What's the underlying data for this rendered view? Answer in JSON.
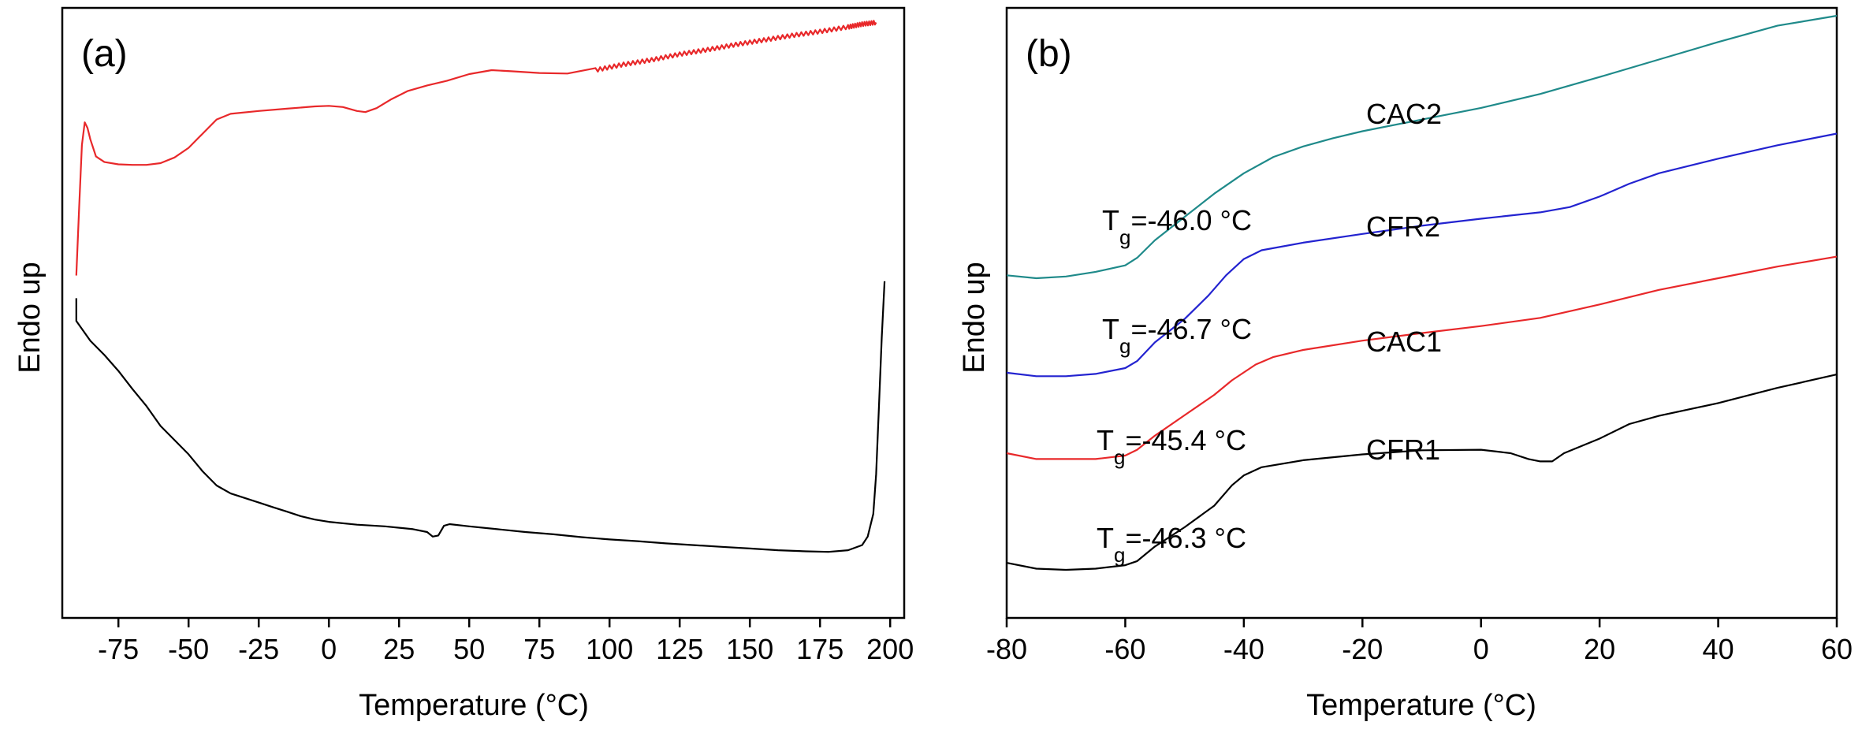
{
  "chart_data": [
    {
      "panel": "(a)",
      "type": "line",
      "xlabel": "Temperature (°C)",
      "ylabel": "Endo up",
      "xlim": [
        -95,
        205
      ],
      "ylim": [
        0,
        100
      ],
      "xticks": [
        -75,
        -50,
        -25,
        0,
        25,
        50,
        75,
        100,
        125,
        150,
        175,
        200
      ],
      "y_tick_labels": false,
      "series": [
        {
          "color": "#e8282a",
          "noise_above": 95,
          "points": [
            [
              -90,
              57
            ],
            [
              -89,
              69
            ],
            [
              -88,
              80
            ],
            [
              -87,
              84
            ],
            [
              -86,
              83
            ],
            [
              -85,
              81
            ],
            [
              -83,
              78
            ],
            [
              -80,
              77
            ],
            [
              -75,
              76.6
            ],
            [
              -70,
              76.5
            ],
            [
              -65,
              76.5
            ],
            [
              -60,
              76.8
            ],
            [
              -55,
              77.8
            ],
            [
              -50,
              79.5
            ],
            [
              -45,
              82
            ],
            [
              -40,
              84.5
            ],
            [
              -35,
              85.5
            ],
            [
              -25,
              86
            ],
            [
              -15,
              86.4
            ],
            [
              -5,
              86.8
            ],
            [
              0,
              86.9
            ],
            [
              5,
              86.7
            ],
            [
              10,
              86
            ],
            [
              13,
              85.8
            ],
            [
              17,
              86.5
            ],
            [
              22,
              88
            ],
            [
              28,
              89.5
            ],
            [
              35,
              90.5
            ],
            [
              42,
              91.3
            ],
            [
              50,
              92.5
            ],
            [
              58,
              93.2
            ],
            [
              65,
              93
            ],
            [
              75,
              92.7
            ],
            [
              85,
              92.6
            ],
            [
              95,
              93.2
            ],
            [
              105,
              94.2
            ],
            [
              115,
              95
            ],
            [
              125,
              96
            ],
            [
              135,
              96.8
            ],
            [
              145,
              97.7
            ],
            [
              155,
              98.5
            ],
            [
              165,
              99.3
            ],
            [
              175,
              100
            ],
            [
              185,
              100.8
            ],
            [
              190,
              101.3
            ],
            [
              195,
              101.6
            ]
          ]
        },
        {
          "color": "#000000",
          "points": [
            [
              -90,
              53
            ],
            [
              -90,
              49
            ],
            [
              -85,
              45.5
            ],
            [
              -80,
              43
            ],
            [
              -75,
              40.2
            ],
            [
              -70,
              37
            ],
            [
              -65,
              34
            ],
            [
              -60,
              30.5
            ],
            [
              -55,
              28
            ],
            [
              -50,
              25.5
            ],
            [
              -45,
              22.5
            ],
            [
              -40,
              20
            ],
            [
              -35,
              18.6
            ],
            [
              -30,
              17.8
            ],
            [
              -25,
              17
            ],
            [
              -20,
              16.2
            ],
            [
              -15,
              15.4
            ],
            [
              -10,
              14.6
            ],
            [
              -5,
              14
            ],
            [
              0,
              13.6
            ],
            [
              10,
              13.1
            ],
            [
              20,
              12.8
            ],
            [
              30,
              12.3
            ],
            [
              35,
              11.8
            ],
            [
              37,
              11
            ],
            [
              39,
              11.2
            ],
            [
              41,
              12.9
            ],
            [
              43,
              13.2
            ],
            [
              50,
              12.8
            ],
            [
              60,
              12.3
            ],
            [
              70,
              11.8
            ],
            [
              80,
              11.4
            ],
            [
              90,
              10.9
            ],
            [
              100,
              10.5
            ],
            [
              110,
              10.2
            ],
            [
              120,
              9.8
            ],
            [
              130,
              9.5
            ],
            [
              140,
              9.2
            ],
            [
              150,
              8.9
            ],
            [
              160,
              8.6
            ],
            [
              170,
              8.4
            ],
            [
              178,
              8.3
            ],
            [
              185,
              8.6
            ],
            [
              190,
              9.5
            ],
            [
              192,
              11
            ],
            [
              194,
              15
            ],
            [
              195,
              22
            ],
            [
              196,
              34
            ],
            [
              197,
              46
            ],
            [
              198,
              56
            ]
          ]
        }
      ]
    },
    {
      "panel": "(b)",
      "type": "line",
      "xlabel": "Temperature (°C)",
      "ylabel": "Endo up",
      "xlim": [
        -80,
        60
      ],
      "ylim": [
        0,
        100
      ],
      "xticks": [
        -80,
        -60,
        -40,
        -20,
        0,
        20,
        40,
        60
      ],
      "y_tick_labels": false,
      "series": [
        {
          "name": "CAC2",
          "color": "#1f8a8a",
          "Tg_label": "-46.0 °C",
          "points": [
            [
              -80,
              55.5
            ],
            [
              -75,
              55
            ],
            [
              -70,
              55.3
            ],
            [
              -65,
              56.1
            ],
            [
              -60,
              57.2
            ],
            [
              -58,
              58.5
            ],
            [
              -55,
              61.5
            ],
            [
              -50,
              65.5
            ],
            [
              -45,
              69.5
            ],
            [
              -40,
              73
            ],
            [
              -35,
              75.8
            ],
            [
              -30,
              77.6
            ],
            [
              -25,
              79
            ],
            [
              -20,
              80.2
            ],
            [
              -10,
              82.2
            ],
            [
              0,
              84.2
            ],
            [
              10,
              86.6
            ],
            [
              20,
              89.5
            ],
            [
              30,
              92.5
            ],
            [
              40,
              95.5
            ],
            [
              50,
              98.3
            ],
            [
              60,
              100
            ]
          ]
        },
        {
          "name": "CFR2",
          "color": "#2323d0",
          "Tg_label": "-46.7 °C",
          "points": [
            [
              -80,
              38.8
            ],
            [
              -75,
              38.2
            ],
            [
              -70,
              38.2
            ],
            [
              -65,
              38.6
            ],
            [
              -60,
              39.6
            ],
            [
              -58,
              40.8
            ],
            [
              -55,
              44
            ],
            [
              -50,
              48
            ],
            [
              -46,
              52
            ],
            [
              -43,
              55.5
            ],
            [
              -40,
              58.3
            ],
            [
              -37,
              59.8
            ],
            [
              -30,
              61.1
            ],
            [
              -20,
              62.6
            ],
            [
              -10,
              64
            ],
            [
              0,
              65.2
            ],
            [
              10,
              66.3
            ],
            [
              15,
              67.2
            ],
            [
              20,
              69
            ],
            [
              25,
              71.2
            ],
            [
              30,
              73
            ],
            [
              40,
              75.5
            ],
            [
              50,
              77.8
            ],
            [
              60,
              79.8
            ]
          ]
        },
        {
          "name": "CAC1",
          "color": "#e8282a",
          "Tg_label": "-45.4 °C",
          "points": [
            [
              -80,
              25
            ],
            [
              -75,
              24
            ],
            [
              -70,
              24
            ],
            [
              -65,
              24
            ],
            [
              -60,
              24.6
            ],
            [
              -58,
              25.6
            ],
            [
              -55,
              28
            ],
            [
              -50,
              31.5
            ],
            [
              -45,
              35
            ],
            [
              -42,
              37.5
            ],
            [
              -38,
              40.2
            ],
            [
              -35,
              41.5
            ],
            [
              -30,
              42.7
            ],
            [
              -20,
              44.3
            ],
            [
              -10,
              45.6
            ],
            [
              0,
              46.8
            ],
            [
              10,
              48.2
            ],
            [
              20,
              50.5
            ],
            [
              30,
              53
            ],
            [
              40,
              55
            ],
            [
              50,
              57
            ],
            [
              60,
              58.7
            ]
          ]
        },
        {
          "name": "CFR1",
          "color": "#000000",
          "Tg_label": "-46.3 °C",
          "points": [
            [
              -80,
              6.2
            ],
            [
              -75,
              5.2
            ],
            [
              -70,
              5
            ],
            [
              -65,
              5.2
            ],
            [
              -60,
              5.8
            ],
            [
              -58,
              6.5
            ],
            [
              -55,
              9
            ],
            [
              -50,
              12.3
            ],
            [
              -45,
              16
            ],
            [
              -42,
              19.5
            ],
            [
              -40,
              21.2
            ],
            [
              -37,
              22.6
            ],
            [
              -30,
              23.8
            ],
            [
              -20,
              24.8
            ],
            [
              -10,
              25.5
            ],
            [
              0,
              25.6
            ],
            [
              5,
              25
            ],
            [
              8,
              24
            ],
            [
              10,
              23.6
            ],
            [
              12,
              23.6
            ],
            [
              14,
              25
            ],
            [
              20,
              27.5
            ],
            [
              25,
              30
            ],
            [
              30,
              31.4
            ],
            [
              40,
              33.6
            ],
            [
              50,
              36.2
            ],
            [
              60,
              38.5
            ]
          ]
        }
      ],
      "annotations": [
        {
          "prefix": "T",
          "sub": "g",
          "text": "=-46.0 °C"
        },
        {
          "prefix": "T",
          "sub": "g",
          "text": "=-46.7 °C"
        },
        {
          "prefix": "T",
          "sub": "g",
          "text": "=-45.4 °C"
        },
        {
          "prefix": "T",
          "sub": "g",
          "text": "=-46.3 °C"
        }
      ]
    }
  ]
}
